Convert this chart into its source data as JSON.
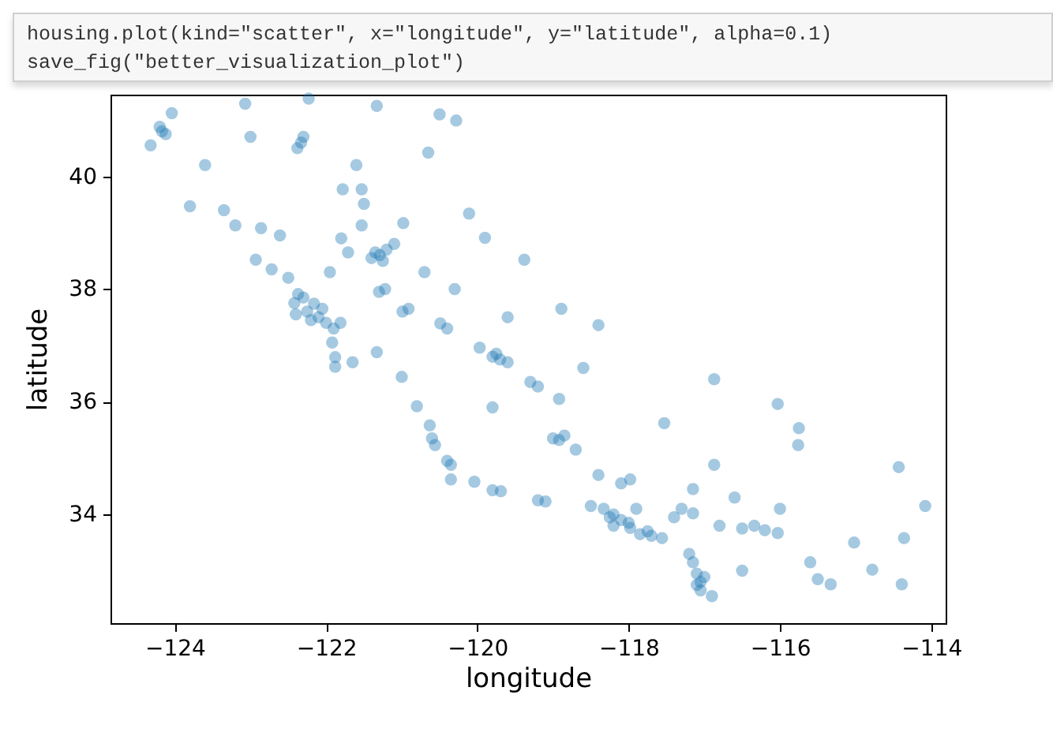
{
  "chart_data": {
    "type": "scatter",
    "annotations": [
      "housing.plot(kind=\"scatter\", x=\"longitude\", y=\"latitude\", alpha=0.1)",
      "save_fig(\"better_visualization_plot\")"
    ],
    "xlabel": "longitude",
    "ylabel": "latitude",
    "xlim": [
      -124.85,
      -113.81
    ],
    "ylim": [
      32.07,
      41.45
    ],
    "xticks": [
      -124,
      -122,
      -120,
      -118,
      -116,
      -114
    ],
    "yticks": [
      34,
      36,
      38,
      40
    ],
    "grid": false,
    "marker": "circle",
    "color": "#1f77b4",
    "x": [
      -124.17,
      -124.12,
      -124.2,
      -124.32,
      -124.04,
      -123.07,
      -122.33,
      -122.38,
      -122.3,
      -122.23,
      -121.33,
      -120.5,
      -120.65,
      -121.6,
      -123.8,
      -123.35,
      -123.2,
      -122.86,
      -122.61,
      -121.78,
      -121.53,
      -121.5,
      -121.53,
      -120.98,
      -121.29,
      -121.4,
      -121.2,
      -121.1,
      -121.71,
      -121.95,
      -122.72,
      -122.93,
      -122.5,
      -122.16,
      -122.3,
      -122.37,
      -122.25,
      -122.1,
      -122.0,
      -121.81,
      -121.9,
      -122.42,
      -122.4,
      -121.92,
      -121.88,
      -121.88,
      -121.65,
      -121.22,
      -121.3,
      -120.91,
      -120.99,
      -120.49,
      -120.4,
      -119.97,
      -119.8,
      -119.7,
      -119.6,
      -119.2,
      -119.3,
      -118.92,
      -118.92,
      -119.0,
      -118.85,
      -120.63,
      -120.56,
      -120.6,
      -120.35,
      -120.4,
      -120.35,
      -120.04,
      -119.69,
      -119.8,
      -119.1,
      -119.2,
      -118.33,
      -118.5,
      -118.2,
      -118.1,
      -117.98,
      -118.2,
      -117.85,
      -117.56,
      -117.7,
      -117.4,
      -117.15,
      -117.3,
      -117.15,
      -117.53,
      -117.98,
      -118.1,
      -117.0,
      -117.1,
      -116.9,
      -117.05,
      -117.15,
      -117.2,
      -116.8,
      -116.34,
      -116.5,
      -116.03,
      -116.2,
      -115.33,
      -115.5,
      -114.36,
      -114.43,
      -115.76,
      -116.03,
      -116.87,
      -115.75,
      -114.08,
      -114.39,
      -114.78,
      -115.02,
      -116.87,
      -121.33,
      -121.0,
      -120.8,
      -118.89,
      -118.4,
      -119.9,
      -120.11,
      -119.38,
      -120.28,
      -123.6,
      -123.0,
      -121.8,
      -120.7,
      -120.3,
      -119.6,
      -118.6,
      -119.8,
      -118.7,
      -118.4,
      -116.6,
      -116.0,
      -115.6,
      -116.5,
      -117.9,
      -118.0,
      -117.75,
      -118.25,
      -122.05,
      -122.2,
      -117.05,
      -117.1,
      -121.35,
      -121.25,
      -119.75
    ],
    "values": [
      40.8,
      40.75,
      40.88,
      40.55,
      41.12,
      41.29,
      40.6,
      40.5,
      40.7,
      41.38,
      41.25,
      41.1,
      40.42,
      40.2,
      39.47,
      39.4,
      39.13,
      39.08,
      38.95,
      39.77,
      39.77,
      39.51,
      39.13,
      39.17,
      38.6,
      38.55,
      38.7,
      38.8,
      38.65,
      38.3,
      38.35,
      38.52,
      38.2,
      37.74,
      37.85,
      37.91,
      37.6,
      37.5,
      37.4,
      37.4,
      37.3,
      37.75,
      37.55,
      37.05,
      36.79,
      36.62,
      36.7,
      38.0,
      37.95,
      37.65,
      37.6,
      37.39,
      37.3,
      36.96,
      36.8,
      36.75,
      36.7,
      36.27,
      36.35,
      36.05,
      35.32,
      35.35,
      35.4,
      35.58,
      35.23,
      35.35,
      34.88,
      34.95,
      34.62,
      34.58,
      34.41,
      34.43,
      34.23,
      34.25,
      34.1,
      34.15,
      34.0,
      33.9,
      33.76,
      33.8,
      33.65,
      33.58,
      33.62,
      33.95,
      34.02,
      34.1,
      34.45,
      35.62,
      34.62,
      34.55,
      32.89,
      32.75,
      32.55,
      32.65,
      33.15,
      33.3,
      33.8,
      33.8,
      33.75,
      33.67,
      33.72,
      32.76,
      32.85,
      33.58,
      34.84,
      35.23,
      35.96,
      36.4,
      35.53,
      34.15,
      32.76,
      33.02,
      33.5,
      34.88,
      36.88,
      36.44,
      35.92,
      37.65,
      37.36,
      38.91,
      39.34,
      38.52,
      40.99,
      40.2,
      40.7,
      38.9,
      38.3,
      38.0,
      37.5,
      36.6,
      35.9,
      35.15,
      34.7,
      34.3,
      34.1,
      33.15,
      33.0,
      34.1,
      33.85,
      33.7,
      33.95,
      37.65,
      37.45,
      32.8,
      32.95,
      38.65,
      38.5,
      36.85
    ]
  }
}
